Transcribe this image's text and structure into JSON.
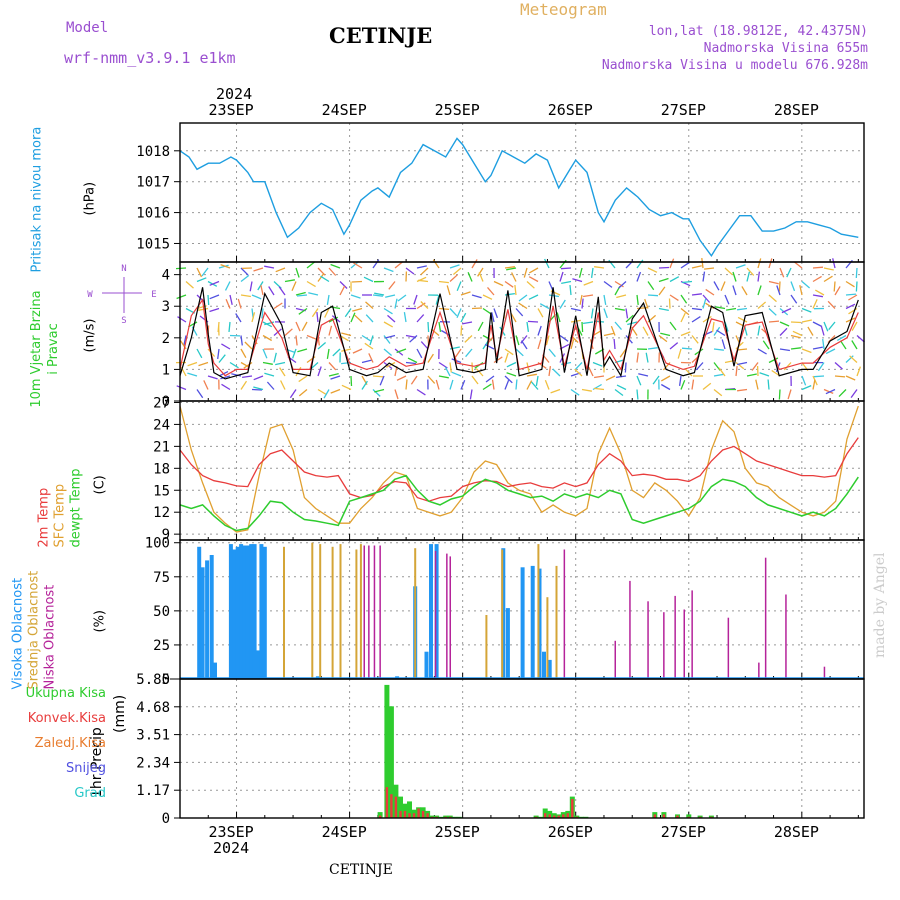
{
  "header": {
    "model_label": "Model",
    "model_name": "wrf-nmm_v3.9.1 e1km",
    "station": "CETINJE",
    "kind": "Meteogram",
    "lonlat": "lon,lat (18.9812E, 42.4375N)",
    "elevation": "Nadmorska Visina 655m",
    "model_elevation": "Nadmorska Visina u modelu 676.928m",
    "footer_station": "CETINJE",
    "credit": "made by Angel"
  },
  "time_axis": {
    "year": "2024",
    "start": "22SEP",
    "days": [
      "23SEP",
      "24SEP",
      "25SEP",
      "26SEP",
      "27SEP",
      "28SEP"
    ],
    "range_days": [
      0,
      6.05
    ]
  },
  "colors": {
    "pressure": "#1e9ee0",
    "wind_speed": "#000000",
    "temp_2m": "#e83c3c",
    "temp_sfc": "#e0a030",
    "dewpoint": "#2ecc2e",
    "cloud_high": "#2196f3",
    "cloud_mid": "#d4a537",
    "cloud_low": "#b5239a",
    "precip_total": "#2ecc2e",
    "precip_conv": "#e83c3c",
    "violet": "#9a4fd0"
  },
  "chart_data": [
    {
      "type": "line",
      "ylabel": "Pritisak na nivou mora",
      "unit": "(hPa)",
      "ylim": [
        1014.4,
        1018.9
      ],
      "yticks": [
        1015,
        1016,
        1017,
        1018
      ],
      "x": [
        0,
        0.08,
        0.15,
        0.25,
        0.35,
        0.45,
        0.5,
        0.6,
        0.65,
        0.75,
        0.85,
        0.95,
        1.05,
        1.15,
        1.25,
        1.35,
        1.45,
        1.5,
        1.6,
        1.7,
        1.75,
        1.85,
        1.95,
        2.05,
        2.15,
        2.25,
        2.35,
        2.45,
        2.5,
        2.6,
        2.7,
        2.75,
        2.85,
        2.95,
        3.05,
        3.15,
        3.25,
        3.35,
        3.45,
        3.5,
        3.6,
        3.7,
        3.75,
        3.85,
        3.95,
        4.05,
        4.15,
        4.25,
        4.35,
        4.45,
        4.5,
        4.6,
        4.7,
        4.75,
        4.85,
        4.95,
        5.05,
        5.15,
        5.25,
        5.35,
        5.45,
        5.55,
        5.65,
        5.75,
        5.85,
        6.0
      ],
      "series": [
        {
          "values": [
            1018.0,
            1017.8,
            1017.4,
            1017.6,
            1017.6,
            1017.8,
            1017.7,
            1017.3,
            1017.0,
            1017.0,
            1016.0,
            1015.2,
            1015.5,
            1016.0,
            1016.3,
            1016.1,
            1015.3,
            1015.6,
            1016.4,
            1016.7,
            1016.8,
            1016.5,
            1017.3,
            1017.6,
            1018.2,
            1018.0,
            1017.8,
            1018.4,
            1018.2,
            1017.6,
            1017.0,
            1017.2,
            1018.0,
            1017.8,
            1017.6,
            1017.9,
            1017.7,
            1016.8,
            1017.4,
            1017.7,
            1017.3,
            1016.0,
            1015.7,
            1016.4,
            1016.8,
            1016.5,
            1016.1,
            1015.9,
            1016.0,
            1015.8,
            1015.8,
            1015.1,
            1014.6,
            1014.9,
            1015.4,
            1015.9,
            1015.9,
            1015.4,
            1015.4,
            1015.5,
            1015.7,
            1015.7,
            1015.6,
            1015.5,
            1015.3,
            1015.2
          ]
        }
      ]
    },
    {
      "type": "line",
      "ylabel": "10m Vjetar Brzina i Pravac",
      "unit": "(m/s)",
      "ylim": [
        0,
        4.4
      ],
      "yticks": [
        0,
        1,
        2,
        3,
        4
      ],
      "compass": [
        "N",
        "W",
        "E",
        "S"
      ],
      "x": [
        0,
        0.1,
        0.2,
        0.25,
        0.3,
        0.4,
        0.5,
        0.6,
        0.75,
        0.9,
        1.0,
        1.15,
        1.25,
        1.35,
        1.5,
        1.65,
        1.75,
        1.85,
        2.0,
        2.15,
        2.3,
        2.45,
        2.6,
        2.7,
        2.75,
        2.8,
        2.9,
        3.0,
        3.2,
        3.3,
        3.4,
        3.5,
        3.6,
        3.7,
        3.75,
        3.8,
        3.9,
        4.0,
        4.1,
        4.3,
        4.45,
        4.55,
        4.7,
        4.8,
        4.9,
        5.0,
        5.15,
        5.3,
        5.5,
        5.6,
        5.75,
        5.9,
        6.0
      ],
      "series": [
        {
          "name": "speed",
          "values": [
            0.8,
            2.0,
            3.6,
            2.1,
            0.9,
            0.7,
            0.8,
            0.9,
            3.4,
            2.4,
            0.9,
            0.8,
            2.8,
            3.0,
            1.0,
            0.8,
            0.9,
            1.2,
            0.9,
            1.0,
            3.4,
            1.0,
            0.9,
            1.0,
            2.8,
            1.2,
            3.5,
            0.8,
            1.0,
            3.6,
            0.9,
            2.7,
            0.8,
            3.3,
            1.1,
            1.4,
            0.8,
            2.6,
            3.1,
            1.0,
            0.8,
            0.9,
            3.0,
            2.8,
            1.1,
            2.7,
            2.8,
            0.8,
            1.0,
            1.0,
            1.9,
            2.2,
            3.2
          ]
        },
        {
          "name": "gust",
          "values": [
            1.0,
            2.7,
            3.2,
            1.8,
            1.2,
            0.8,
            1.0,
            1.0,
            2.8,
            2.0,
            1.0,
            1.0,
            2.4,
            2.6,
            1.2,
            1.0,
            1.1,
            1.4,
            1.1,
            1.2,
            2.8,
            1.2,
            1.1,
            1.2,
            2.4,
            1.4,
            2.9,
            1.0,
            1.2,
            3.0,
            1.1,
            2.4,
            1.0,
            2.8,
            1.3,
            1.6,
            1.0,
            2.3,
            2.7,
            1.2,
            1.0,
            1.1,
            2.6,
            2.5,
            1.3,
            2.4,
            2.5,
            1.0,
            1.2,
            1.2,
            1.7,
            2.0,
            2.8
          ]
        }
      ]
    },
    {
      "type": "line",
      "ylabel": [
        "2m Temp",
        "SFC Temp",
        "dewpt Temp"
      ],
      "unit": "(C)",
      "ylim": [
        8.2,
        27.2
      ],
      "yticks": [
        9,
        12,
        15,
        18,
        21,
        24,
        27
      ],
      "x": [
        0,
        0.1,
        0.2,
        0.3,
        0.4,
        0.5,
        0.6,
        0.7,
        0.8,
        0.9,
        1.0,
        1.1,
        1.2,
        1.3,
        1.4,
        1.5,
        1.6,
        1.7,
        1.8,
        1.9,
        2.0,
        2.1,
        2.2,
        2.3,
        2.4,
        2.5,
        2.6,
        2.7,
        2.8,
        2.9,
        3.0,
        3.1,
        3.2,
        3.3,
        3.4,
        3.5,
        3.6,
        3.7,
        3.8,
        3.9,
        4.0,
        4.1,
        4.2,
        4.3,
        4.4,
        4.5,
        4.6,
        4.7,
        4.8,
        4.9,
        5.0,
        5.1,
        5.2,
        5.3,
        5.4,
        5.5,
        5.6,
        5.7,
        5.8,
        5.9,
        6.0
      ],
      "series": [
        {
          "name": "2m Temp",
          "values": [
            20.5,
            18.5,
            17.0,
            16.3,
            16.0,
            15.6,
            15.5,
            18.5,
            20.0,
            20.5,
            19.0,
            17.5,
            17.0,
            16.8,
            17.0,
            14.5,
            14.0,
            14.3,
            15.5,
            16.2,
            16.0,
            14.0,
            13.5,
            14.0,
            14.2,
            15.5,
            16.0,
            16.3,
            16.2,
            15.5,
            15.8,
            16.0,
            15.5,
            15.3,
            16.0,
            15.5,
            16.0,
            18.5,
            20.0,
            19.0,
            17.0,
            17.2,
            17.0,
            16.5,
            16.5,
            16.2,
            17.0,
            19.0,
            20.5,
            21.0,
            20.0,
            19.0,
            18.5,
            18.0,
            17.5,
            17.0,
            17.0,
            16.8,
            17.0,
            20.0,
            22.2
          ]
        },
        {
          "name": "SFC Temp",
          "values": [
            26.5,
            20.5,
            16.0,
            12.0,
            10.5,
            9.3,
            9.6,
            17.0,
            23.5,
            24.0,
            20.5,
            14.0,
            12.5,
            11.5,
            10.5,
            10.5,
            12.5,
            14.0,
            16.0,
            17.5,
            17.0,
            12.5,
            12.0,
            11.5,
            12.0,
            14.0,
            17.5,
            19.0,
            18.5,
            16.0,
            15.0,
            14.5,
            12.0,
            13.0,
            12.0,
            11.5,
            12.5,
            20.0,
            23.5,
            20.0,
            15.0,
            14.0,
            16.0,
            15.0,
            13.5,
            11.5,
            14.0,
            20.5,
            24.5,
            23.0,
            18.0,
            16.0,
            15.5,
            14.0,
            13.0,
            12.0,
            11.5,
            12.0,
            13.5,
            22.0,
            26.5
          ]
        },
        {
          "name": "dewpt Temp",
          "values": [
            13.0,
            12.5,
            13.0,
            11.5,
            10.2,
            9.5,
            9.8,
            11.5,
            13.5,
            13.3,
            12.0,
            11.0,
            10.8,
            10.5,
            10.2,
            13.5,
            14.0,
            14.5,
            15.0,
            16.5,
            17.0,
            15.0,
            13.5,
            13.0,
            13.8,
            14.2,
            15.5,
            16.5,
            16.0,
            15.0,
            14.5,
            14.0,
            14.2,
            13.5,
            14.5,
            14.0,
            14.5,
            14.0,
            15.0,
            14.5,
            11.0,
            10.5,
            11.0,
            11.5,
            12.0,
            12.5,
            13.5,
            15.5,
            16.5,
            16.2,
            15.5,
            14.0,
            13.0,
            12.5,
            12.0,
            11.5,
            12.0,
            11.5,
            12.5,
            14.5,
            16.8
          ]
        }
      ]
    },
    {
      "type": "bar",
      "ylabel": [
        "Visoka Oblacnost",
        "Srednja Oblacnost",
        "Niska Oblacnost"
      ],
      "unit": "(%)",
      "ylim": [
        0,
        102
      ],
      "yticks": [
        0,
        25,
        50,
        75,
        100
      ],
      "series": [
        {
          "name": "Visoka Oblacnost",
          "x": [
            0.17,
            0.2,
            0.24,
            0.28,
            0.31,
            0.45,
            0.48,
            0.51,
            0.54,
            0.57,
            0.6,
            0.63,
            0.66,
            0.69,
            0.72,
            0.75,
            1.22,
            1.92,
            2.08,
            2.18,
            2.22,
            2.27,
            2.86,
            2.9,
            3.03,
            3.12,
            3.18,
            3.22,
            3.27
          ],
          "values": [
            97,
            82,
            87,
            91,
            12,
            99,
            95,
            97,
            99,
            98,
            98,
            99,
            99,
            21,
            99,
            97,
            2,
            2,
            68,
            20,
            99,
            99,
            96,
            52,
            82,
            83,
            81,
            20,
            14
          ]
        },
        {
          "name": "Srednja Oblacnost",
          "x": [
            0.92,
            1.17,
            1.24,
            1.35,
            1.42,
            1.56,
            1.6,
            2.08,
            2.71,
            2.85,
            3.17,
            3.25,
            3.33
          ],
          "values": [
            97,
            100,
            99,
            97,
            99,
            95,
            99,
            96,
            47,
            95,
            99,
            60,
            83
          ]
        },
        {
          "name": "Niska Oblacnost",
          "x": [
            1.63,
            1.67,
            1.72,
            1.77,
            2.26,
            2.36,
            2.39,
            3.4,
            3.85,
            3.98,
            4.14,
            4.28,
            4.38,
            4.46,
            4.53,
            4.85,
            5.12,
            5.18,
            5.36,
            5.7
          ],
          "values": [
            98,
            98,
            98,
            98,
            94,
            92,
            90,
            95,
            28,
            72,
            57,
            49,
            61,
            51,
            65,
            45,
            12,
            89,
            62,
            9
          ]
        }
      ]
    },
    {
      "type": "bar",
      "ylabel": "1hr Precip",
      "unit": "(mm)",
      "ylim": [
        0,
        5.85
      ],
      "yticks": [
        0,
        1.17,
        2.34,
        3.51,
        4.68,
        5.85
      ],
      "legend": [
        "Ukupna Kisa",
        "Konvek.Kisa",
        "Zaledj.Kisa",
        "Snijeg",
        "Grad"
      ],
      "legend_colors": [
        "#2ecc2e",
        "#e83c3c",
        "#e87c2e",
        "#5050e0",
        "#28c8c8"
      ],
      "x": [
        1.77,
        1.83,
        1.87,
        1.91,
        1.95,
        1.99,
        2.03,
        2.07,
        2.11,
        2.15,
        2.19,
        2.23,
        2.27,
        2.31,
        2.35,
        2.39,
        2.43,
        2.47,
        3.15,
        3.19,
        3.23,
        3.27,
        3.31,
        3.35,
        3.39,
        3.43,
        3.47,
        3.51,
        3.55,
        3.59,
        4.2,
        4.28,
        4.4,
        4.5,
        4.6,
        4.7
      ],
      "series": [
        {
          "name": "Ukupna Kisa",
          "values": [
            0.25,
            5.6,
            4.7,
            1.4,
            0.9,
            0.6,
            0.7,
            0.35,
            0.45,
            0.45,
            0.3,
            0.1,
            0.1,
            0.05,
            0.1,
            0.1,
            0.05,
            0.05,
            0.1,
            0.05,
            0.4,
            0.3,
            0.2,
            0.15,
            0.25,
            0.3,
            0.9,
            0.1,
            0.05,
            0.05,
            0.25,
            0.25,
            0.15,
            0.15,
            0.1,
            0.1
          ]
        },
        {
          "name": "Konvek.Kisa",
          "values": [
            0.1,
            1.3,
            1.0,
            0.9,
            0.3,
            0.3,
            0.2,
            0.2,
            0.4,
            0.3,
            0.2,
            0.05,
            0.05,
            0.02,
            0.05,
            0.05,
            0.02,
            0.02,
            0.05,
            0.02,
            0.2,
            0.15,
            0.1,
            0.1,
            0.15,
            0.2,
            0.8,
            0.05,
            0.02,
            0.02,
            0.15,
            0.15,
            0.1,
            0.05,
            0.05,
            0.05
          ]
        }
      ]
    }
  ]
}
